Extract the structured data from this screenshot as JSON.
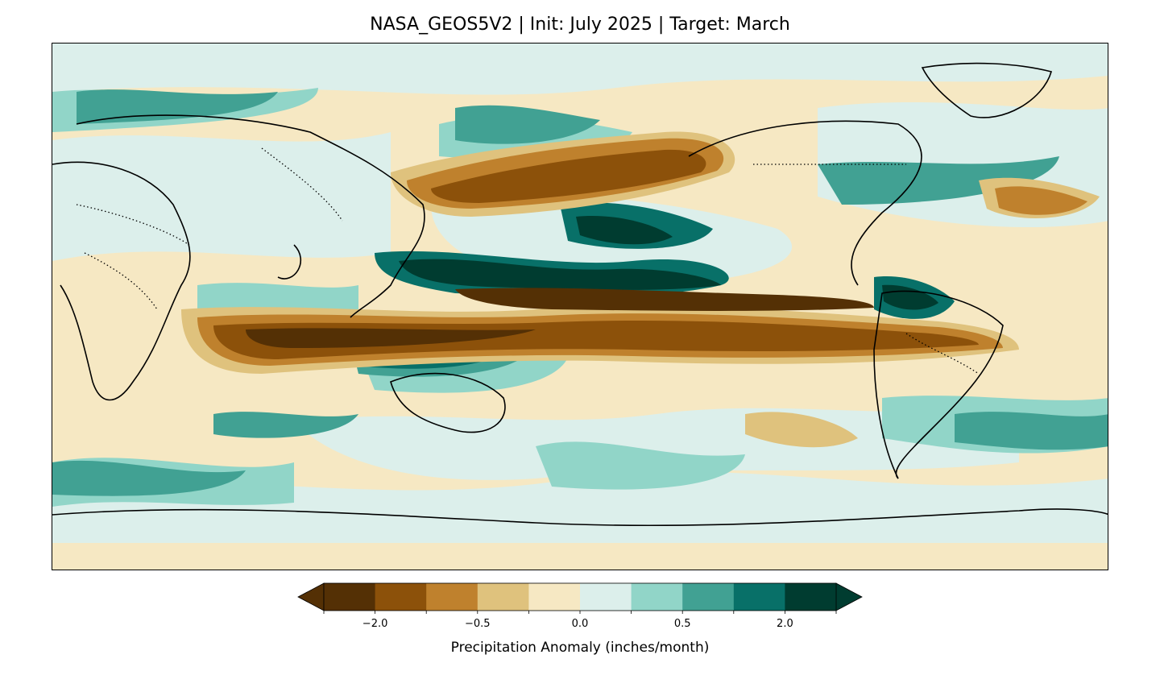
{
  "title": "NASA_GEOS5V2 | Init: July 2025 | Target: March",
  "map": {
    "projection": "plate-carree",
    "central_longitude": "Pacific-centered",
    "field": "precipitation anomaly",
    "coastlines": true,
    "country_borders": "dotted"
  },
  "colorbar": {
    "label": "Precipitation Anomaly (inches/month)",
    "extend": "both",
    "colors": [
      "#543005",
      "#8c510a",
      "#bf812d",
      "#dfc27d",
      "#f6e8c3",
      "#dcefeb",
      "#91d5c8",
      "#41a193",
      "#087068",
      "#003c30"
    ],
    "under_color": "#543005",
    "over_color": "#003c30",
    "tick_labels": [
      "−2.0",
      "−0.5",
      "0.0",
      "0.5",
      "2.0"
    ]
  }
}
